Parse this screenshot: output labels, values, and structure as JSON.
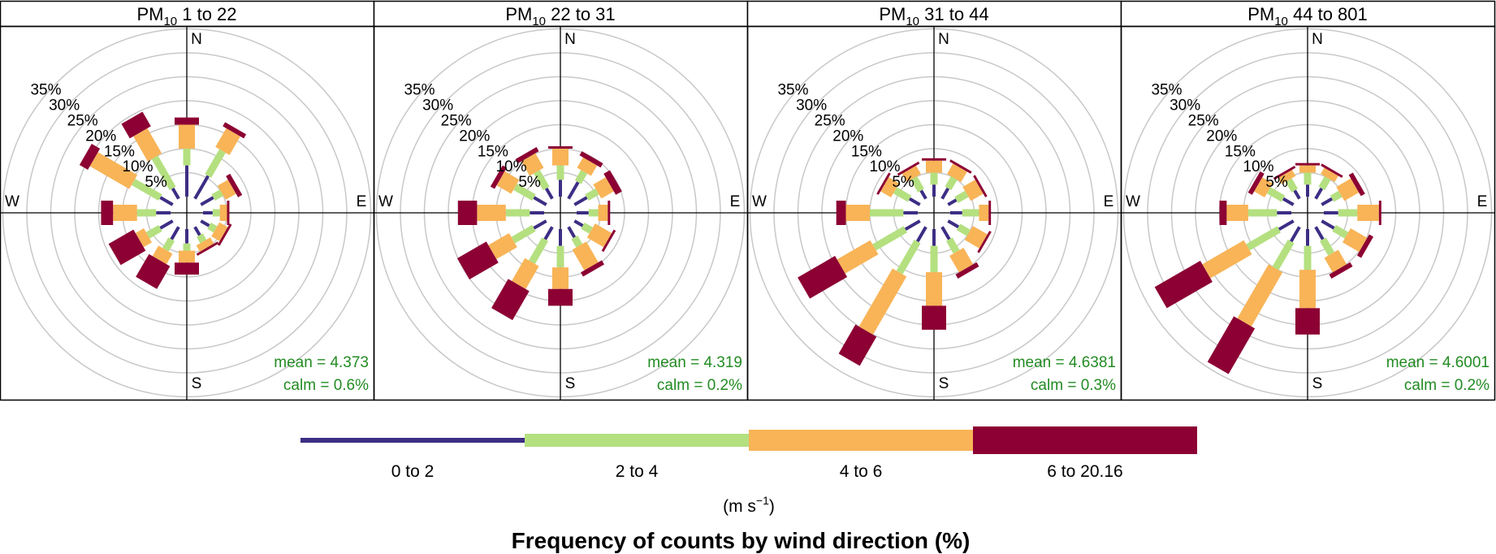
{
  "chart_data": {
    "type": "windrose",
    "caption": "Frequency of counts by wind direction (%)",
    "ring_labels": [
      "5%",
      "10%",
      "15%",
      "20%",
      "25%",
      "30%",
      "35%"
    ],
    "rmax": 36,
    "directions_deg": [
      0,
      30,
      60,
      90,
      120,
      150,
      180,
      210,
      240,
      270,
      300,
      330
    ],
    "compass": {
      "n": "N",
      "e": "E",
      "s": "S",
      "w": "W"
    },
    "speed_bins": [
      {
        "label": "0 to 2",
        "color": "#3D2D84"
      },
      {
        "label": "2 to 4",
        "color": "#B4E080"
      },
      {
        "label": "4 to 6",
        "color": "#F8B457"
      },
      {
        "label": "6 to 20.16",
        "color": "#8C0033"
      }
    ],
    "units": {
      "prefix": "(m s",
      "sup": "−1",
      "suffix": ")"
    },
    "panels": [
      {
        "title_pre": "PM",
        "title_sub": "10",
        "title_post": " 1 to 22",
        "mean": "mean = 4.373",
        "calm": "calm = 0.6%",
        "cumulative": [
          [
            6.5,
            10.0,
            15.0,
            16.5
          ],
          [
            5.5,
            11.5,
            16.0,
            17.0
          ],
          [
            3.0,
            5.0,
            7.5,
            8.5
          ],
          [
            2.0,
            3.5,
            5.0,
            5.5
          ],
          [
            2.0,
            3.5,
            5.5,
            6.0
          ],
          [
            2.0,
            3.5,
            5.0,
            5.5
          ],
          [
            3.0,
            4.5,
            7.0,
            9.5
          ],
          [
            3.0,
            5.5,
            8.0,
            13.5
          ],
          [
            3.0,
            6.0,
            8.0,
            14.0
          ],
          [
            3.0,
            7.0,
            12.0,
            14.5
          ],
          [
            3.0,
            9.5,
            19.0,
            21.0
          ],
          [
            2.5,
            10.0,
            16.0,
            19.5
          ]
        ]
      },
      {
        "title_pre": "PM",
        "title_sub": "10",
        "title_post": " 22 to 31",
        "mean": "mean = 4.319",
        "calm": "calm = 0.2%",
        "cumulative": [
          [
            3.5,
            6.5,
            10.0,
            10.5
          ],
          [
            4.0,
            6.5,
            9.0,
            10.0
          ],
          [
            3.0,
            5.5,
            8.5,
            10.0
          ],
          [
            2.5,
            4.5,
            6.5,
            7.0
          ],
          [
            2.0,
            4.0,
            8.0,
            8.5
          ],
          [
            2.5,
            4.5,
            9.5,
            10.5
          ],
          [
            3.5,
            8.0,
            12.5,
            16.0
          ],
          [
            3.0,
            8.5,
            14.0,
            21.0
          ],
          [
            3.0,
            8.0,
            13.0,
            20.0
          ],
          [
            3.0,
            8.0,
            14.0,
            18.0
          ],
          [
            3.0,
            7.5,
            11.0,
            12.0
          ],
          [
            2.5,
            6.5,
            10.0,
            11.0
          ]
        ]
      },
      {
        "title_pre": "PM",
        "title_sub": "10",
        "title_post": " 31 to 44",
        "mean": "mean = 4.6381",
        "calm": "calm = 0.3%",
        "cumulative": [
          [
            2.5,
            5.0,
            7.5,
            8.0
          ],
          [
            2.5,
            5.0,
            7.5,
            8.0
          ],
          [
            2.0,
            4.5,
            7.5,
            8.0
          ],
          [
            2.5,
            6.0,
            8.0,
            8.5
          ],
          [
            2.5,
            5.0,
            8.5,
            9.0
          ],
          [
            3.0,
            6.0,
            10.0,
            11.0
          ],
          [
            3.5,
            9.0,
            16.0,
            21.0
          ],
          [
            3.5,
            11.0,
            25.0,
            32.0
          ],
          [
            3.5,
            11.0,
            19.0,
            28.0
          ],
          [
            3.0,
            10.0,
            15.0,
            17.0
          ],
          [
            2.5,
            6.0,
            8.5,
            9.0
          ],
          [
            2.0,
            5.0,
            7.0,
            7.5
          ]
        ]
      },
      {
        "title_pre": "PM",
        "title_sub": "10",
        "title_post": " 44 to 801",
        "mean": "mean = 4.6001",
        "calm": "calm = 0.2%",
        "cumulative": [
          [
            2.5,
            5.0,
            6.5,
            7.0
          ],
          [
            2.5,
            5.0,
            6.5,
            7.0
          ],
          [
            2.5,
            4.5,
            8.0,
            9.0
          ],
          [
            3.0,
            7.0,
            11.5,
            12.0
          ],
          [
            3.0,
            6.0,
            10.0,
            11.0
          ],
          [
            3.0,
            6.5,
            10.0,
            11.0
          ],
          [
            3.5,
            8.5,
            16.5,
            22.0
          ],
          [
            3.5,
            10.0,
            23.0,
            34.0
          ],
          [
            3.5,
            11.0,
            21.0,
            32.0
          ],
          [
            3.0,
            9.0,
            13.5,
            15.0
          ],
          [
            2.5,
            6.0,
            8.5,
            9.5
          ],
          [
            2.0,
            4.5,
            6.0,
            6.5
          ]
        ]
      }
    ]
  }
}
